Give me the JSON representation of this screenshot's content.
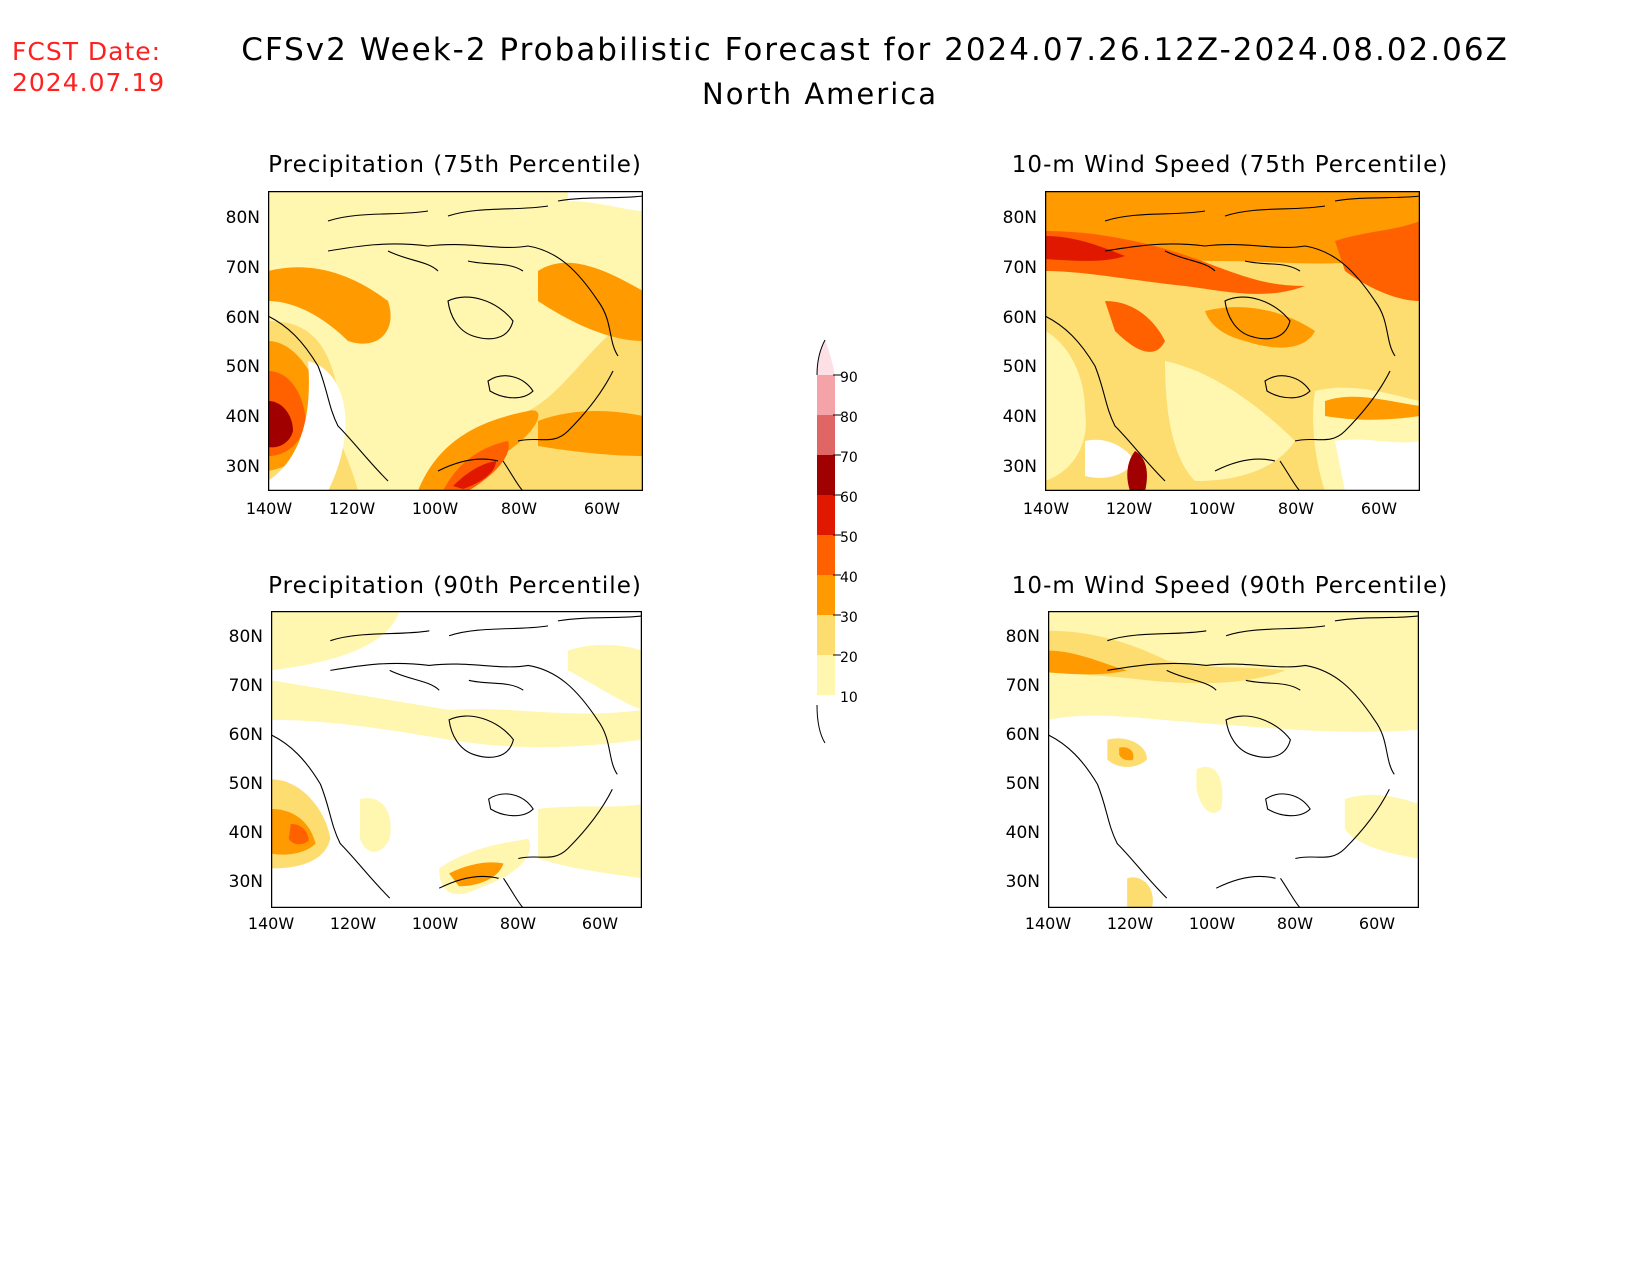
{
  "header": {
    "fcst_label": "FCST Date:",
    "fcst_date": "2024.07.19",
    "title": "CFSv2 Week-2 Probabilistic Forecast for 2024.07.26.12Z-2024.08.02.06Z",
    "subtitle": "North America"
  },
  "panels": [
    {
      "id": "precip75",
      "title": "Precipitation (75th Percentile)"
    },
    {
      "id": "wind75",
      "title": "10-m Wind Speed (75th Percentile)"
    },
    {
      "id": "precip90",
      "title": "Precipitation (90th Percentile)"
    },
    {
      "id": "wind90",
      "title": "10-m Wind Speed (90th Percentile)"
    }
  ],
  "axes": {
    "lat_labels": [
      "80N",
      "70N",
      "60N",
      "50N",
      "40N",
      "30N"
    ],
    "lon_labels": [
      "140W",
      "120W",
      "100W",
      "80W",
      "60W"
    ]
  },
  "colorbar": {
    "labels": [
      "90",
      "80",
      "70",
      "60",
      "50",
      "40",
      "30",
      "20",
      "10"
    ],
    "colors": [
      "#fde0e6",
      "#f4a3a8",
      "#e06666",
      "#a00000",
      "#e01800",
      "#ff6000",
      "#ff9a00",
      "#fddc70",
      "#fff6b0"
    ]
  },
  "colors": {
    "level10": "#fff6b0",
    "level20": "#fddc70",
    "level30": "#ff9a00",
    "level40": "#ff6000",
    "level50": "#e01800",
    "level60": "#a00000",
    "fcst_text": "#ff2020"
  }
}
